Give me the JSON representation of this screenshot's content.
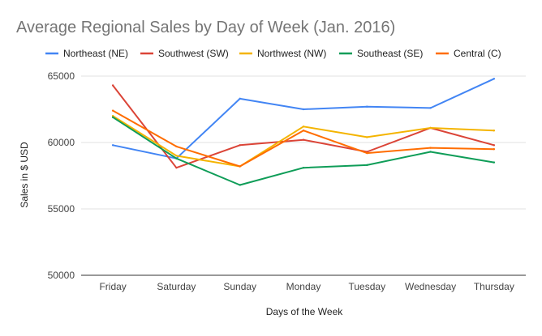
{
  "chart_data": {
    "type": "line",
    "title": "Average Regional Sales by Day of Week (Jan. 2016)",
    "xlabel": "Days of the Week",
    "ylabel": "Sales in $ USD",
    "categories": [
      "Friday",
      "Saturday",
      "Sunday",
      "Monday",
      "Tuesday",
      "Wednesday",
      "Thursday"
    ],
    "ylim": [
      50000,
      65000
    ],
    "yticks": [
      50000,
      55000,
      60000,
      65000
    ],
    "grid": true,
    "legend_position": "top",
    "series": [
      {
        "name": "Northeast (NE)",
        "color": "#4285F4",
        "values": [
          59800,
          58800,
          63300,
          62500,
          62700,
          62600,
          64800
        ]
      },
      {
        "name": "Southwest (SW)",
        "color": "#DB4437",
        "values": [
          64300,
          58100,
          59800,
          60200,
          59300,
          61100,
          59800
        ]
      },
      {
        "name": "Northwest (NW)",
        "color": "#F4B400",
        "values": [
          62000,
          59000,
          58200,
          61200,
          60400,
          61100,
          60900
        ]
      },
      {
        "name": "Southeast (SE)",
        "color": "#0F9D58",
        "values": [
          61900,
          58800,
          56800,
          58100,
          58300,
          59300,
          58500
        ]
      },
      {
        "name": "Central (C)",
        "color": "#FF6D00",
        "values": [
          62400,
          59700,
          58200,
          60900,
          59200,
          59600,
          59500
        ]
      }
    ]
  }
}
